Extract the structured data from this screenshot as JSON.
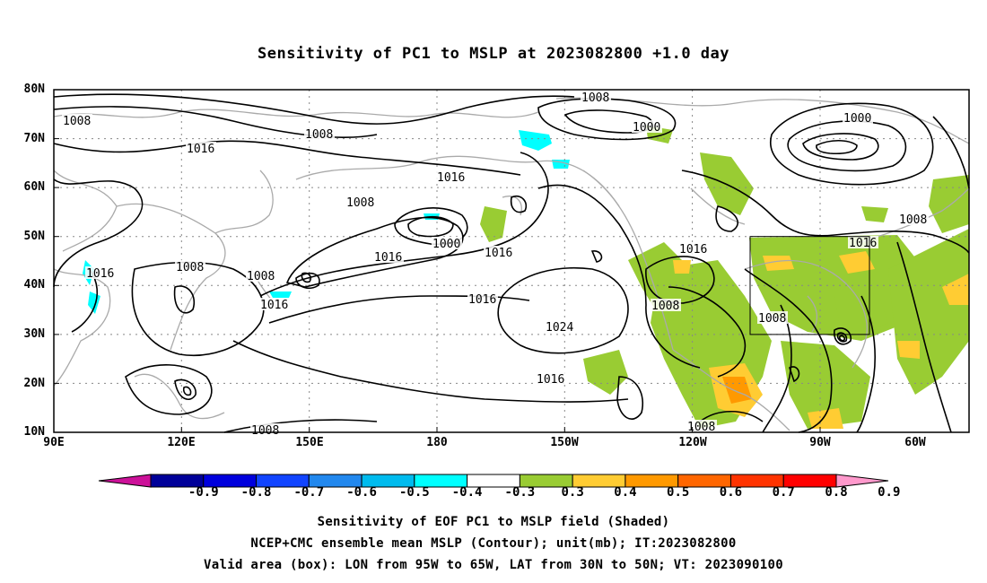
{
  "title": "Sensitivity of PC1 to MSLP at 2023082800 +1.0 day",
  "lat_labels": [
    "80N",
    "70N",
    "60N",
    "50N",
    "40N",
    "30N",
    "20N",
    "10N"
  ],
  "lon_labels": [
    "90E",
    "120E",
    "150E",
    "180",
    "150W",
    "120W",
    "90W",
    "60W"
  ],
  "contour_labels": [
    {
      "text": "1008"
    },
    {
      "text": "1008"
    },
    {
      "text": "1016"
    },
    {
      "text": "1008"
    },
    {
      "text": "1000"
    },
    {
      "text": "1016"
    },
    {
      "text": "1008"
    },
    {
      "text": "1000"
    },
    {
      "text": "1016"
    },
    {
      "text": "1008"
    },
    {
      "text": "1016"
    },
    {
      "text": "1008"
    },
    {
      "text": "1016"
    },
    {
      "text": "1016"
    },
    {
      "text": "1016"
    },
    {
      "text": "1016"
    },
    {
      "text": "1024"
    },
    {
      "text": "1008"
    },
    {
      "text": "1008"
    },
    {
      "text": "1016"
    },
    {
      "text": "1016"
    },
    {
      "text": "1008"
    },
    {
      "text": "1000"
    },
    {
      "text": "1008"
    },
    {
      "text": "1008"
    }
  ],
  "colorbar": {
    "colors": [
      "#cc1199",
      "#000099",
      "#0000dd",
      "#1144ff",
      "#2288ee",
      "#00bbee",
      "#00ffff",
      "#ffffff",
      "#99cc33",
      "#ffcc33",
      "#ff9900",
      "#ff6600",
      "#ff3300",
      "#ff0000",
      "#ff99cc"
    ],
    "labels": [
      "-0.9",
      "-0.8",
      "-0.7",
      "-0.6",
      "-0.5",
      "-0.4",
      "-0.3",
      "0.3",
      "0.4",
      "0.5",
      "0.6",
      "0.7",
      "0.8",
      "0.9"
    ]
  },
  "captions": [
    "Sensitivity of EOF PC1 to MSLP field (Shaded)",
    "NCEP+CMC ensemble mean MSLP (Contour); unit(mb); IT:2023082800",
    "Valid area (box): LON from 95W to 65W, LAT from 30N to 50N; VT: 2023090100"
  ],
  "map": {
    "lon_range": [
      90,
      305
    ],
    "lat_range": [
      10,
      80
    ],
    "valid_box": {
      "lon": [
        265,
        295
      ],
      "lat": [
        30,
        50
      ]
    }
  }
}
